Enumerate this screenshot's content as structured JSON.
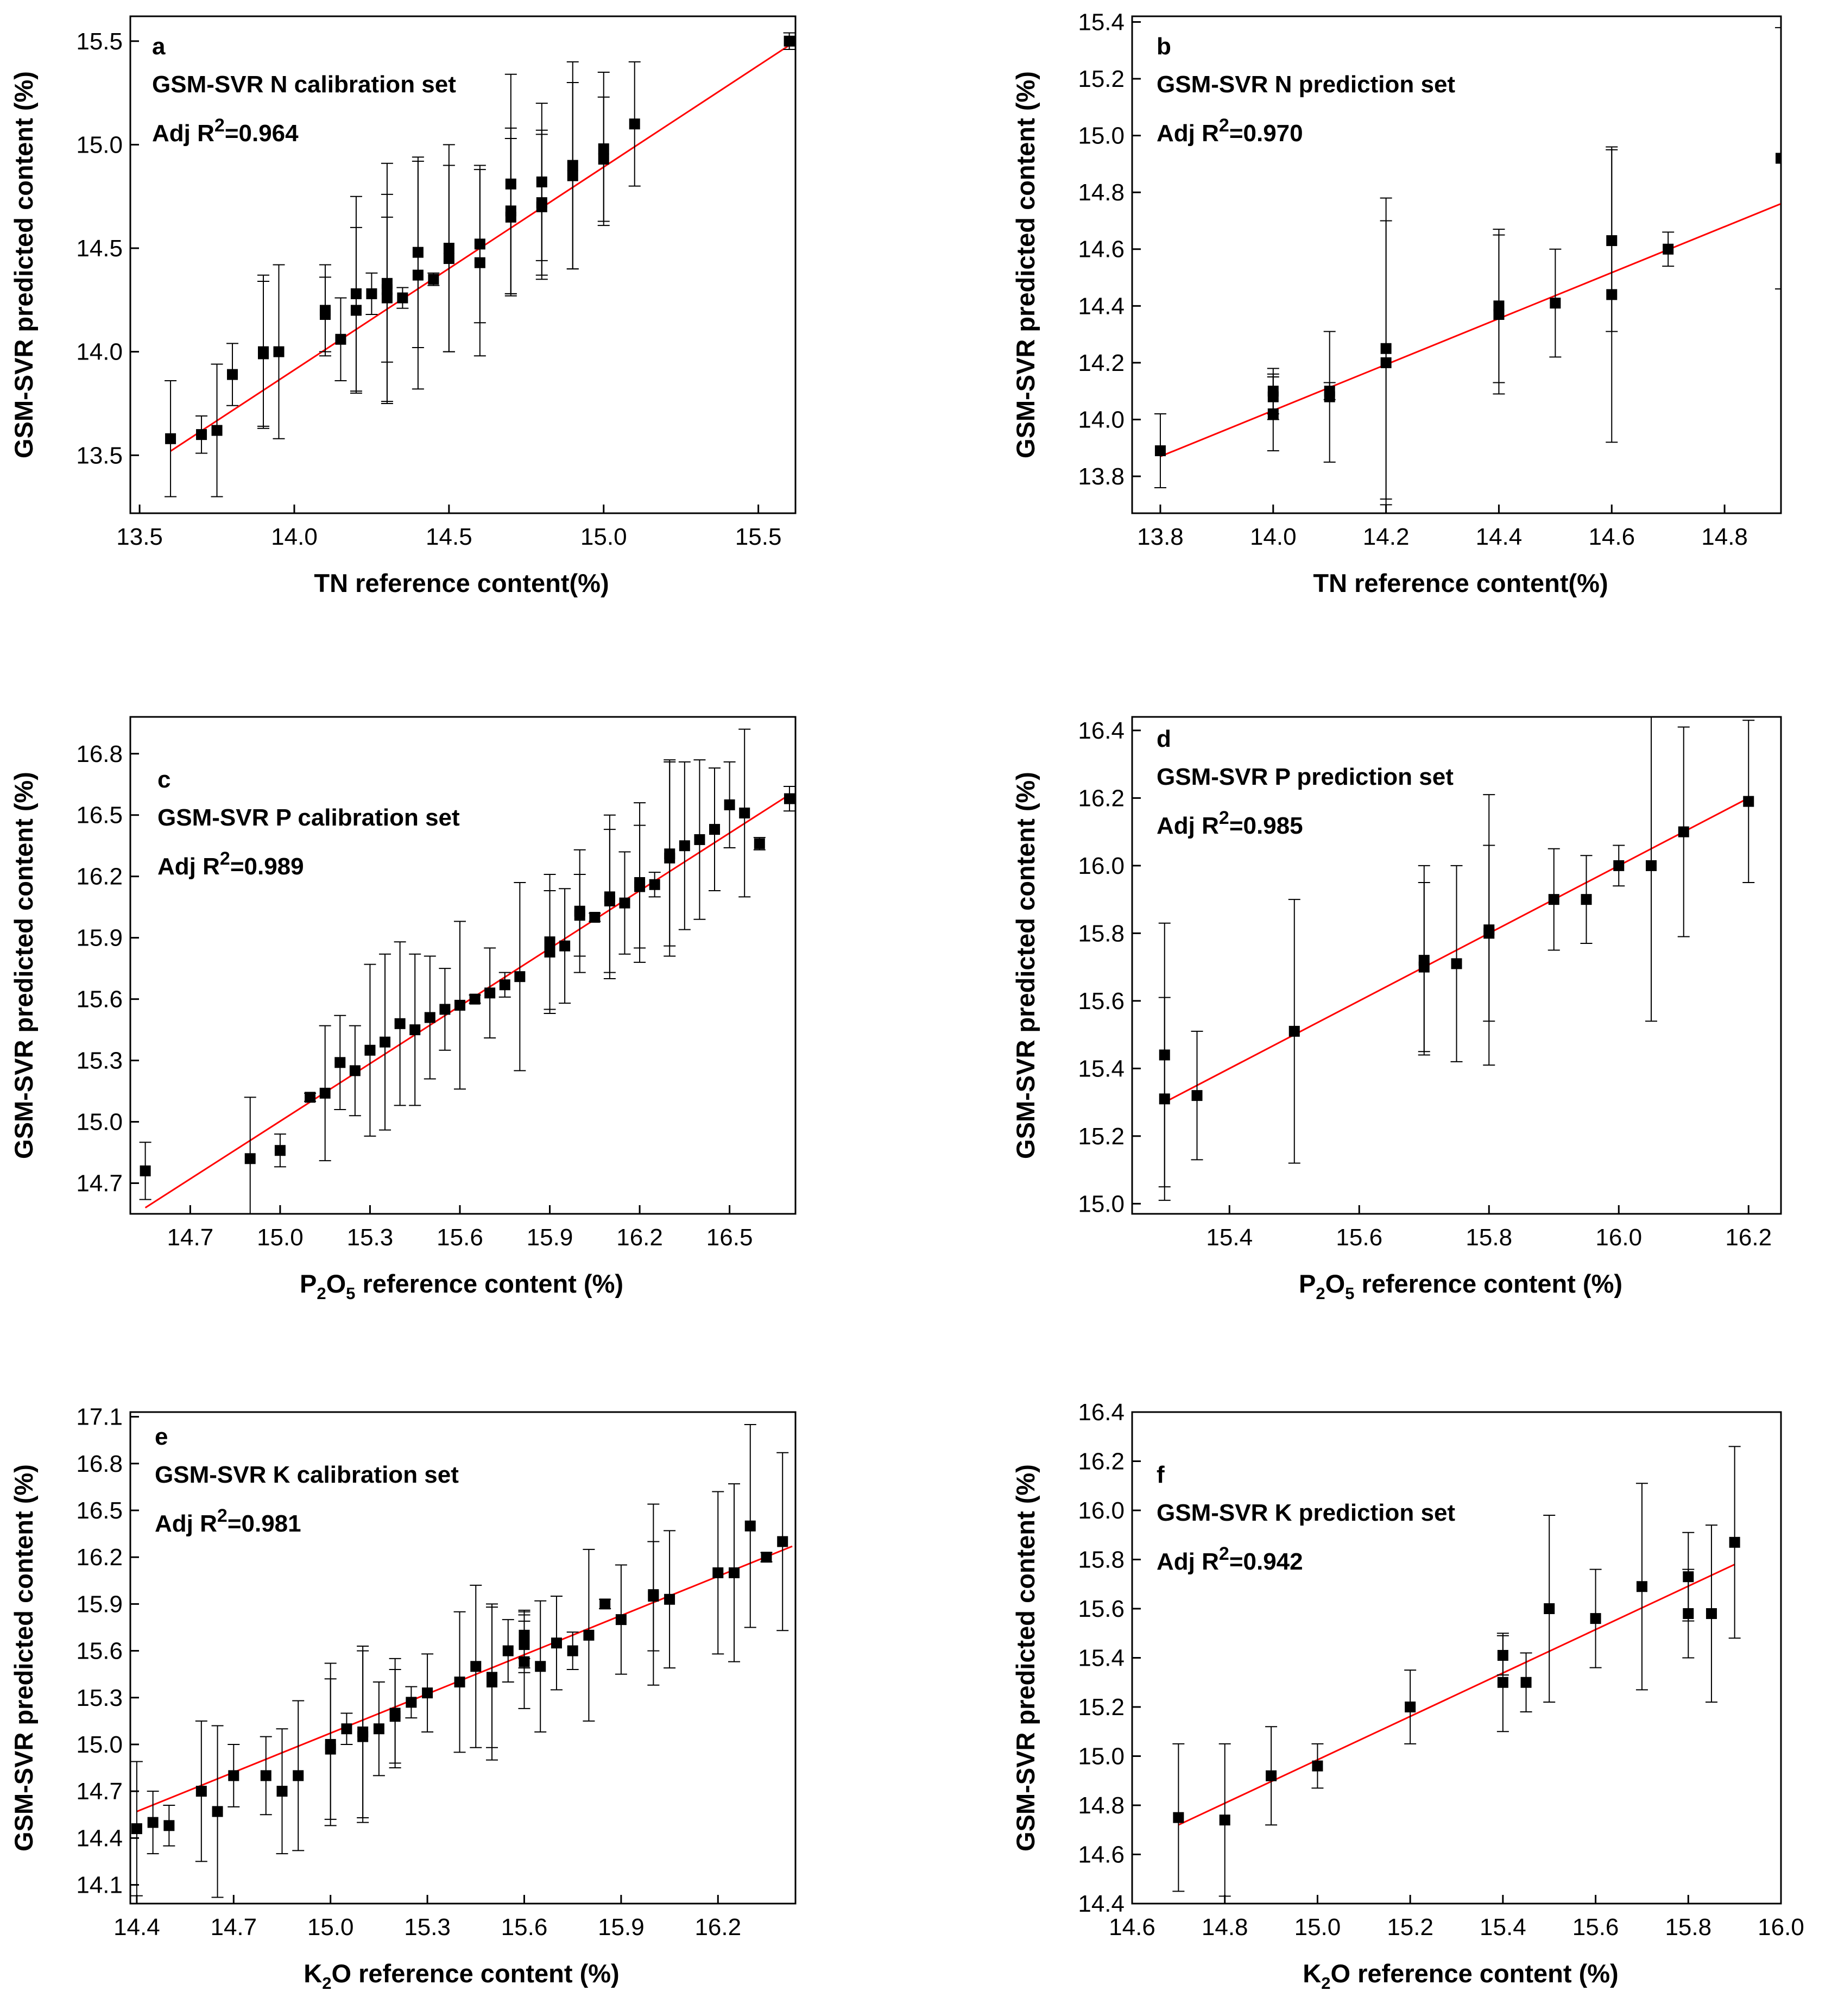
{
  "chart_data": [
    {
      "panel": "a",
      "type": "scatter",
      "title": "GSM-SVR N calibration set",
      "stat_prefix": "Adj R",
      "stat_sup": "2",
      "stat_value": "=0.964",
      "xlabel": "TN reference content(%)",
      "xlabel_parts": [
        "TN reference content(%)"
      ],
      "ylabel": "GSM-SVR predicted content (%)",
      "xlim": [
        13.47,
        15.62
      ],
      "ylim": [
        13.22,
        15.62
      ],
      "xticks": [
        13.5,
        14.0,
        14.5,
        15.0,
        15.5
      ],
      "yticks": [
        13.5,
        14.0,
        14.5,
        15.0,
        15.5
      ],
      "tick_decimals": 1,
      "fit_line": [
        [
          13.6,
          13.52
        ],
        [
          15.6,
          15.48
        ]
      ],
      "points": [
        [
          13.6,
          13.58,
          0.28
        ],
        [
          13.7,
          13.6,
          0.09
        ],
        [
          13.75,
          13.62,
          0.32
        ],
        [
          13.8,
          13.89,
          0.15
        ],
        [
          13.9,
          14.0,
          0.37
        ],
        [
          13.9,
          13.99,
          0.35
        ],
        [
          13.95,
          14.0,
          0.42
        ],
        [
          14.1,
          14.2,
          0.22
        ],
        [
          14.1,
          14.18,
          0.18
        ],
        [
          14.15,
          14.06,
          0.2
        ],
        [
          14.2,
          14.28,
          0.47
        ],
        [
          14.2,
          14.2,
          0.4
        ],
        [
          14.25,
          14.28,
          0.1
        ],
        [
          14.3,
          14.33,
          0.58
        ],
        [
          14.3,
          14.3,
          0.35
        ],
        [
          14.3,
          14.26,
          0.5
        ],
        [
          14.35,
          14.26,
          0.05
        ],
        [
          14.4,
          14.48,
          0.46
        ],
        [
          14.4,
          14.37,
          0.55
        ],
        [
          14.45,
          14.35,
          0.03
        ],
        [
          14.5,
          14.5,
          0.5
        ],
        [
          14.5,
          14.45,
          0.45
        ],
        [
          14.6,
          14.52,
          0.38
        ],
        [
          14.6,
          14.43,
          0.45
        ],
        [
          14.7,
          14.81,
          0.53
        ],
        [
          14.7,
          14.68,
          0.4
        ],
        [
          14.7,
          14.65,
          0.38
        ],
        [
          14.8,
          14.82,
          0.38
        ],
        [
          14.8,
          14.72,
          0.35
        ],
        [
          14.8,
          14.7,
          0.35
        ],
        [
          14.9,
          14.9,
          0.5
        ],
        [
          14.9,
          14.85,
          0.45
        ],
        [
          15.0,
          14.98,
          0.37
        ],
        [
          15.0,
          14.93,
          0.3
        ],
        [
          15.1,
          15.1,
          0.3
        ],
        [
          15.6,
          15.5,
          0.04
        ]
      ]
    },
    {
      "panel": "b",
      "type": "scatter",
      "title": "GSM-SVR N prediction set",
      "stat_prefix": "Adj R",
      "stat_sup": "2",
      "stat_value": "=0.970",
      "xlabel": "TN reference content(%)",
      "xlabel_parts": [
        "TN reference content(%)"
      ],
      "ylabel": "GSM-SVR predicted content (%)",
      "xlim": [
        13.75,
        14.9
      ],
      "ylim": [
        13.67,
        15.42
      ],
      "xticks": [
        13.8,
        14.0,
        14.2,
        14.4,
        14.6,
        14.8
      ],
      "yticks": [
        13.8,
        14.0,
        14.2,
        14.4,
        14.6,
        14.8,
        15.0,
        15.2,
        15.4
      ],
      "tick_decimals": 1,
      "fit_line": [
        [
          13.8,
          13.87
        ],
        [
          14.9,
          14.76
        ]
      ],
      "points": [
        [
          13.8,
          13.89,
          0.13
        ],
        [
          14.0,
          14.1,
          0.08
        ],
        [
          14.0,
          14.08,
          0.08
        ],
        [
          14.0,
          14.02,
          0.13
        ],
        [
          14.1,
          14.1,
          0.03
        ],
        [
          14.1,
          14.08,
          0.23
        ],
        [
          14.2,
          14.25,
          0.53
        ],
        [
          14.2,
          14.2,
          0.5
        ],
        [
          14.4,
          14.4,
          0.27
        ],
        [
          14.4,
          14.37,
          0.28
        ],
        [
          14.5,
          14.41,
          0.19
        ],
        [
          14.6,
          14.63,
          0.32
        ],
        [
          14.6,
          14.44,
          0.52
        ],
        [
          14.7,
          14.6,
          0.06
        ],
        [
          14.9,
          14.92,
          0.46
        ]
      ]
    },
    {
      "panel": "c",
      "type": "scatter",
      "title": "GSM-SVR P calibration set",
      "stat_prefix": "Adj R",
      "stat_sup": "2",
      "stat_value": "=0.989",
      "xlabel": "P2O5 reference content (%)",
      "xlabel_parts": [
        "P",
        "2",
        "O",
        "5",
        " reference content (%)"
      ],
      "ylabel": "GSM-SVR predicted content (%)",
      "xlim": [
        14.5,
        16.72
      ],
      "ylim": [
        14.55,
        16.98
      ],
      "xticks": [
        14.7,
        15.0,
        15.3,
        15.6,
        15.9,
        16.2,
        16.5
      ],
      "yticks": [
        14.7,
        15.0,
        15.3,
        15.6,
        15.9,
        16.2,
        16.5,
        16.8
      ],
      "tick_decimals": 1,
      "fit_line": [
        [
          14.55,
          14.58
        ],
        [
          16.7,
          16.6
        ]
      ],
      "points": [
        [
          14.55,
          14.76,
          0.14
        ],
        [
          14.9,
          14.82,
          0.3
        ],
        [
          15.0,
          14.86,
          0.08
        ],
        [
          15.1,
          15.12,
          0.02
        ],
        [
          15.15,
          15.14,
          0.33
        ],
        [
          15.2,
          15.29,
          0.23
        ],
        [
          15.25,
          15.25,
          0.22
        ],
        [
          15.3,
          15.35,
          0.42
        ],
        [
          15.35,
          15.39,
          0.43
        ],
        [
          15.4,
          15.48,
          0.4
        ],
        [
          15.45,
          15.45,
          0.37
        ],
        [
          15.5,
          15.51,
          0.3
        ],
        [
          15.55,
          15.55,
          0.2
        ],
        [
          15.6,
          15.57,
          0.41
        ],
        [
          15.65,
          15.6,
          0.02
        ],
        [
          15.7,
          15.63,
          0.22
        ],
        [
          15.75,
          15.67,
          0.06
        ],
        [
          15.8,
          15.71,
          0.46
        ],
        [
          15.9,
          15.88,
          0.33
        ],
        [
          15.9,
          15.83,
          0.3
        ],
        [
          15.95,
          15.86,
          0.28
        ],
        [
          16.0,
          16.03,
          0.3
        ],
        [
          16.0,
          16.01,
          0.2
        ],
        [
          16.05,
          16.0,
          0.02
        ],
        [
          16.1,
          16.1,
          0.4
        ],
        [
          16.1,
          16.08,
          0.35
        ],
        [
          16.15,
          16.07,
          0.25
        ],
        [
          16.2,
          16.17,
          0.39
        ],
        [
          16.2,
          16.15,
          0.3
        ],
        [
          16.25,
          16.16,
          0.06
        ],
        [
          16.3,
          16.31,
          0.45
        ],
        [
          16.3,
          16.29,
          0.48
        ],
        [
          16.35,
          16.35,
          0.41
        ],
        [
          16.4,
          16.38,
          0.39
        ],
        [
          16.45,
          16.43,
          0.3
        ],
        [
          16.5,
          16.55,
          0.21
        ],
        [
          16.55,
          16.51,
          0.41
        ],
        [
          16.6,
          16.36,
          0.03
        ],
        [
          16.7,
          16.58,
          0.06
        ]
      ]
    },
    {
      "panel": "d",
      "type": "scatter",
      "title": "GSM-SVR P prediction set",
      "stat_prefix": "Adj R",
      "stat_sup": "2",
      "stat_value": "=0.985",
      "xlabel": "P2O5 reference content (%)",
      "xlabel_parts": [
        "P",
        "2",
        "O",
        "5",
        " reference content (%)"
      ],
      "ylabel": "GSM-SVR predicted content (%)",
      "xlim": [
        15.25,
        16.25
      ],
      "ylim": [
        14.97,
        16.44
      ],
      "xticks": [
        15.4,
        15.6,
        15.8,
        16.0,
        16.2
      ],
      "yticks": [
        15.0,
        15.2,
        15.4,
        15.6,
        15.8,
        16.0,
        16.2,
        16.4
      ],
      "tick_decimals": 1,
      "fit_line": [
        [
          15.3,
          15.3
        ],
        [
          16.2,
          16.2
        ]
      ],
      "points": [
        [
          15.3,
          15.44,
          0.39
        ],
        [
          15.3,
          15.31,
          0.3
        ],
        [
          15.35,
          15.32,
          0.19
        ],
        [
          15.5,
          15.51,
          0.39
        ],
        [
          15.7,
          15.72,
          0.28
        ],
        [
          15.7,
          15.7,
          0.25
        ],
        [
          15.75,
          15.71,
          0.29
        ],
        [
          15.8,
          15.81,
          0.4
        ],
        [
          15.8,
          15.8,
          0.26
        ],
        [
          15.9,
          15.9,
          0.15
        ],
        [
          15.95,
          15.9,
          0.13
        ],
        [
          16.0,
          16.0,
          0.06
        ],
        [
          16.05,
          16.0,
          0.46
        ],
        [
          16.1,
          16.1,
          0.31
        ],
        [
          16.2,
          16.19,
          0.24
        ]
      ]
    },
    {
      "panel": "e",
      "type": "scatter",
      "title": "GSM-SVR K calibration set",
      "stat_prefix": "Adj R",
      "stat_sup": "2",
      "stat_value": "=0.981",
      "xlabel": "K2O reference content (%)",
      "xlabel_parts": [
        "K",
        "2",
        "O reference content (%)"
      ],
      "ylabel": "GSM-SVR predicted content (%)",
      "xlim": [
        14.38,
        16.44
      ],
      "ylim": [
        13.98,
        17.13
      ],
      "xticks": [
        14.4,
        14.7,
        15.0,
        15.3,
        15.6,
        15.9,
        16.2
      ],
      "yticks": [
        14.1,
        14.4,
        14.7,
        15.0,
        15.3,
        15.6,
        15.9,
        16.2,
        16.5,
        16.8,
        17.1
      ],
      "tick_decimals": 1,
      "fit_line": [
        [
          14.4,
          14.57
        ],
        [
          16.43,
          16.27
        ]
      ],
      "points": [
        [
          14.4,
          14.46,
          0.43
        ],
        [
          14.45,
          14.5,
          0.2
        ],
        [
          14.5,
          14.48,
          0.13
        ],
        [
          14.6,
          14.7,
          0.45
        ],
        [
          14.65,
          14.57,
          0.55
        ],
        [
          14.7,
          14.8,
          0.2
        ],
        [
          14.8,
          14.8,
          0.25
        ],
        [
          14.85,
          14.7,
          0.4
        ],
        [
          14.9,
          14.8,
          0.48
        ],
        [
          15.0,
          15.0,
          0.52
        ],
        [
          15.0,
          14.97,
          0.45
        ],
        [
          15.05,
          15.1,
          0.1
        ],
        [
          15.1,
          15.08,
          0.55
        ],
        [
          15.1,
          15.05,
          0.55
        ],
        [
          15.15,
          15.1,
          0.3
        ],
        [
          15.2,
          15.2,
          0.35
        ],
        [
          15.2,
          15.18,
          0.3
        ],
        [
          15.25,
          15.27,
          0.1
        ],
        [
          15.3,
          15.33,
          0.25
        ],
        [
          15.4,
          15.4,
          0.45
        ],
        [
          15.45,
          15.5,
          0.52
        ],
        [
          15.5,
          15.43,
          0.45
        ],
        [
          15.5,
          15.4,
          0.5
        ],
        [
          15.55,
          15.6,
          0.2
        ],
        [
          15.6,
          15.7,
          0.15
        ],
        [
          15.6,
          15.66,
          0.2
        ],
        [
          15.6,
          15.64,
          0.15
        ],
        [
          15.6,
          15.53,
          0.3
        ],
        [
          15.65,
          15.5,
          0.42
        ],
        [
          15.7,
          15.65,
          0.3
        ],
        [
          15.75,
          15.6,
          0.12
        ],
        [
          15.8,
          15.7,
          0.55
        ],
        [
          15.85,
          15.9,
          0.03
        ],
        [
          15.9,
          15.8,
          0.35
        ],
        [
          16.0,
          15.96,
          0.58
        ],
        [
          16.0,
          15.95,
          0.35
        ],
        [
          16.05,
          15.93,
          0.44
        ],
        [
          16.2,
          16.1,
          0.52
        ],
        [
          16.25,
          16.1,
          0.57
        ],
        [
          16.3,
          16.4,
          0.65
        ],
        [
          16.35,
          16.2,
          0.03
        ],
        [
          16.4,
          16.3,
          0.57
        ]
      ]
    },
    {
      "panel": "f",
      "type": "scatter",
      "title": "GSM-SVR K prediction set",
      "stat_prefix": "Adj R",
      "stat_sup": "2",
      "stat_value": "=0.942",
      "xlabel": "K2O reference content (%)",
      "xlabel_parts": [
        "K",
        "2",
        "O reference content (%)"
      ],
      "ylabel": "GSM-SVR predicted content (%)",
      "xlim": [
        14.6,
        16.0
      ],
      "ylim": [
        14.4,
        16.4
      ],
      "xticks": [
        14.6,
        14.8,
        15.0,
        15.2,
        15.4,
        15.6,
        15.8,
        16.0
      ],
      "yticks": [
        14.4,
        14.6,
        14.8,
        15.0,
        15.2,
        15.4,
        15.6,
        15.8,
        16.0,
        16.2,
        16.4
      ],
      "tick_decimals": 1,
      "fit_line": [
        [
          14.7,
          14.72
        ],
        [
          15.9,
          15.78
        ]
      ],
      "points": [
        [
          14.7,
          14.75,
          0.3
        ],
        [
          14.8,
          14.74,
          0.31
        ],
        [
          14.9,
          14.92,
          0.2
        ],
        [
          15.0,
          14.96,
          0.09
        ],
        [
          15.2,
          15.2,
          0.15
        ],
        [
          15.4,
          15.41,
          0.08
        ],
        [
          15.4,
          15.3,
          0.2
        ],
        [
          15.45,
          15.3,
          0.12
        ],
        [
          15.5,
          15.6,
          0.38
        ],
        [
          15.6,
          15.56,
          0.2
        ],
        [
          15.7,
          15.69,
          0.42
        ],
        [
          15.8,
          15.73,
          0.18
        ],
        [
          15.8,
          15.58,
          0.18
        ],
        [
          15.85,
          15.58,
          0.36
        ],
        [
          15.9,
          15.87,
          0.39
        ]
      ]
    }
  ]
}
